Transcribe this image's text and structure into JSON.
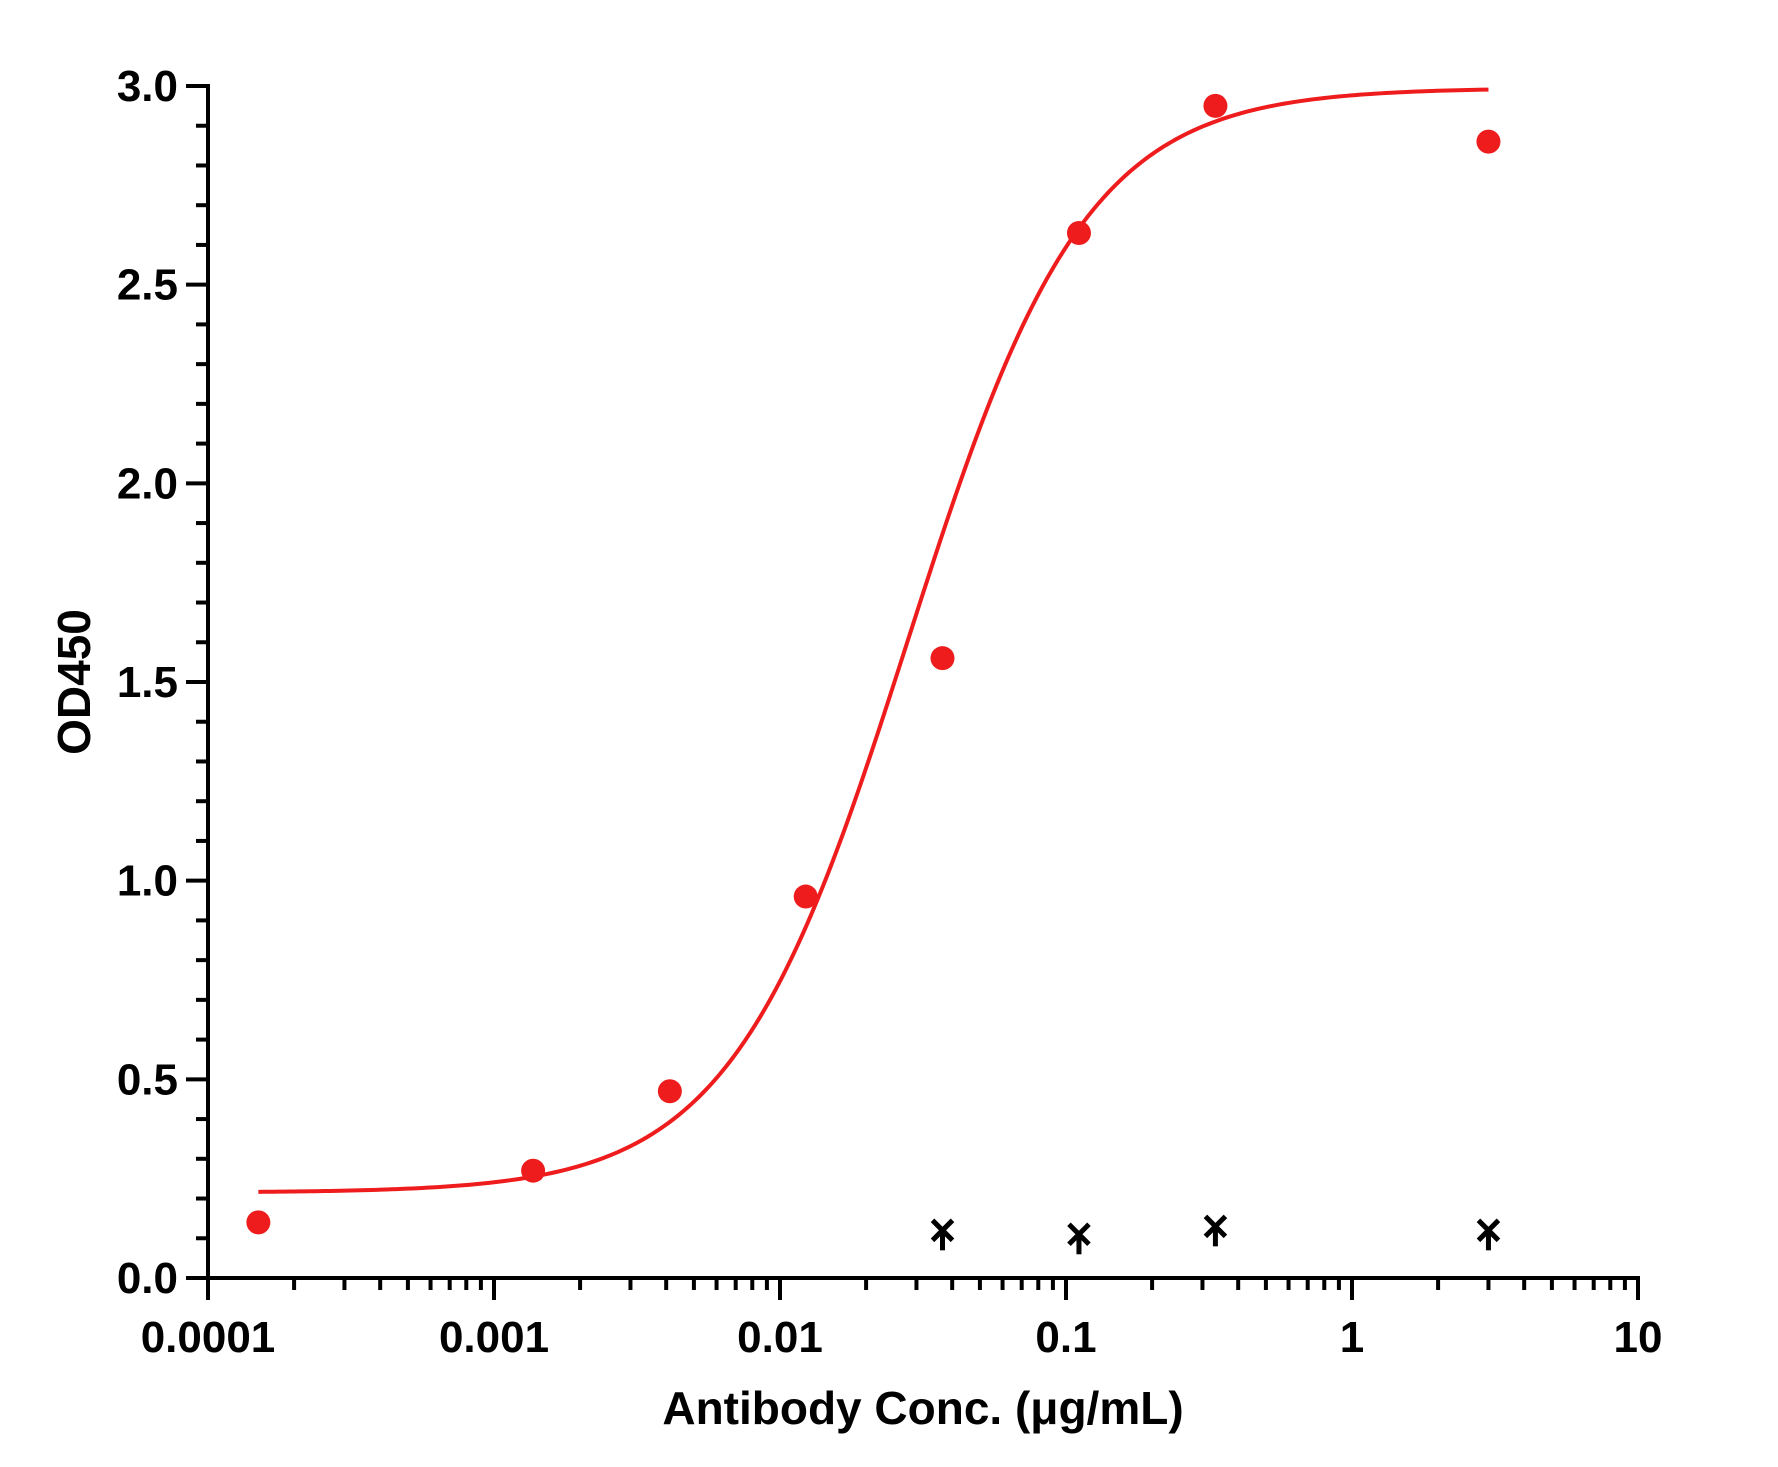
{
  "chart_data": {
    "type": "scatter",
    "xlabel": "Antibody Conc. (μg/mL)",
    "ylabel": "OD450",
    "xscale": "log",
    "xlim": [
      0.0001,
      10
    ],
    "ylim": [
      0.0,
      3.0
    ],
    "x_tick_labels": [
      "0.0001",
      "0.001",
      "0.01",
      "0.1",
      "1",
      "10"
    ],
    "y_tick_labels": [
      "0.0",
      "0.5",
      "1.0",
      "1.5",
      "2.0",
      "2.5",
      "3.0"
    ],
    "grid": false,
    "legend": "none",
    "colors": {
      "series_1": "#ee1c1c",
      "series_2": "#000000",
      "axes": "#000000"
    },
    "series": [
      {
        "marker": "circle",
        "color": "#ee1c1c",
        "x": [
          0.00015,
          0.00137,
          0.00412,
          0.0123,
          0.037,
          0.111,
          0.333,
          3.0
        ],
        "y": [
          0.14,
          0.27,
          0.47,
          0.96,
          1.56,
          2.63,
          2.95,
          2.86
        ]
      },
      {
        "marker": "cross",
        "color": "#000000",
        "x": [
          0.037,
          0.111,
          0.333,
          3.0
        ],
        "y": [
          0.12,
          0.11,
          0.13,
          0.12
        ]
      }
    ],
    "fit_curve": {
      "model": "4PL",
      "color": "#ee1c1c",
      "bottom": 0.215,
      "top": 2.995,
      "ec50": 0.028,
      "hill": 1.4,
      "x_range": [
        0.00015,
        3.0
      ]
    }
  }
}
